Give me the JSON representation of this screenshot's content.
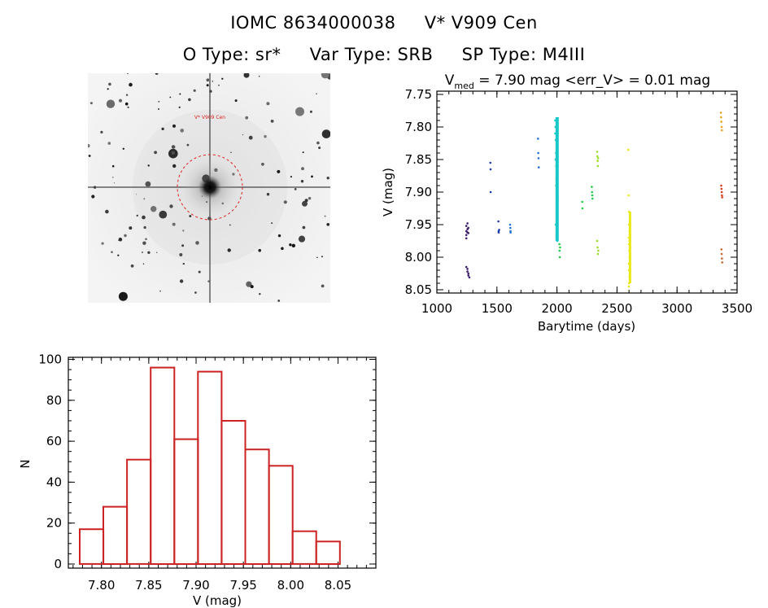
{
  "header": {
    "line1": {
      "id": "IOMC 8634000038",
      "name": "V* V909 Cen"
    },
    "line2": {
      "otype": "O Type: sr*",
      "vartype": "Var Type: SRB",
      "sptype": "SP Type: M4III"
    }
  },
  "colors": {
    "histogram_bar": "#cc2222",
    "sky_marker": "#dd2222",
    "lc_series": [
      "#3a1a6b",
      "#1a3aa8",
      "#1e6fd6",
      "#18c8c8",
      "#22cc44",
      "#99dd22",
      "#e8e818",
      "#e8a018",
      "#d83a18",
      "#c86428"
    ]
  },
  "chart_data": [
    {
      "type": "image",
      "description_label": "sky-cutout",
      "annotation": "V* V909 Cen"
    },
    {
      "type": "scatter",
      "title": {
        "main": "V",
        "subscript": "med",
        "rest": " = 7.90 mag <err_V> = 0.01 mag"
      },
      "xlabel": "Barytime (days)",
      "ylabel": "V (mag)",
      "xlim": [
        1000,
        3500
      ],
      "ylim": [
        8.055,
        7.745
      ],
      "y_inverted": true,
      "xticks": [
        1000,
        1500,
        2000,
        2500,
        3000,
        3500
      ],
      "yticks": [
        7.75,
        7.8,
        7.85,
        7.9,
        7.95,
        8.0,
        8.05
      ],
      "series": [
        {
          "x": [
            1245,
            1245,
            1245,
            1245,
            1245,
            1255,
            1255,
            1255,
            1255,
            1255,
            1262,
            1262,
            1262,
            1262,
            1270
          ],
          "y": [
            7.952,
            7.96,
            7.966,
            7.971,
            8.015,
            7.948,
            7.957,
            7.962,
            8.018,
            8.022,
            7.955,
            7.963,
            8.025,
            8.028,
            8.031
          ]
        },
        {
          "x": [
            1445,
            1447,
            1448,
            1512,
            1514,
            1515,
            1518
          ],
          "y": [
            7.855,
            7.865,
            7.9,
            7.945,
            7.96,
            7.962,
            7.958
          ]
        },
        {
          "x": [
            1610,
            1612,
            1613,
            1614,
            1842,
            1844,
            1846,
            1848
          ],
          "y": [
            7.95,
            7.955,
            7.96,
            7.962,
            7.818,
            7.84,
            7.848,
            7.862
          ]
        },
        {
          "x": [
            1985,
            1988,
            1990,
            1992,
            1994,
            1996,
            1998,
            2000,
            2002,
            2004,
            1986,
            1989,
            1993,
            1997,
            2001,
            2005,
            1990,
            1995,
            2000,
            2003
          ],
          "y": [
            7.79,
            7.8,
            7.82,
            7.84,
            7.86,
            7.88,
            7.9,
            7.92,
            7.94,
            7.96,
            7.81,
            7.85,
            7.89,
            7.93,
            7.87,
            7.91,
            7.95,
            7.965,
            7.83,
            7.975
          ]
        },
        {
          "x": [
            2020,
            2022,
            2024,
            2026,
            2210,
            2212,
            2290,
            2292,
            2294,
            2296
          ],
          "y": [
            7.98,
            7.99,
            8.0,
            7.985,
            7.915,
            7.925,
            7.892,
            7.9,
            7.905,
            7.91
          ]
        },
        {
          "x": [
            2335,
            2337,
            2339,
            2341,
            2343,
            2335,
            2338,
            2341,
            2344
          ],
          "y": [
            7.838,
            7.845,
            7.852,
            7.86,
            7.848,
            7.975,
            7.985,
            7.995,
            7.99
          ]
        },
        {
          "x": [
            2595,
            2597,
            2599,
            2601,
            2603,
            2598,
            2600,
            2602,
            2604,
            2599,
            2601,
            2603,
            2600,
            2598,
            2602
          ],
          "y": [
            7.835,
            7.905,
            7.93,
            7.95,
            7.96,
            7.97,
            7.98,
            7.99,
            8.0,
            8.01,
            8.02,
            8.03,
            8.04,
            8.045,
            7.975
          ]
        },
        {
          "x": [
            3365,
            3367,
            3369,
            3371,
            3373
          ],
          "y": [
            7.778,
            7.785,
            7.792,
            7.8,
            7.805
          ]
        },
        {
          "x": [
            3368,
            3370,
            3372,
            3374,
            3376
          ],
          "y": [
            7.89,
            7.895,
            7.9,
            7.905,
            7.908
          ]
        },
        {
          "x": [
            3370,
            3372,
            3374,
            3376
          ],
          "y": [
            7.988,
            7.995,
            8.002,
            8.008
          ]
        }
      ]
    },
    {
      "type": "bar",
      "xlabel": "V (mag)",
      "ylabel": "N",
      "xlim": [
        7.765,
        8.09
      ],
      "ylim": [
        -2,
        101
      ],
      "xticks": [
        7.8,
        7.85,
        7.9,
        7.95,
        8.0,
        8.05
      ],
      "yticks": [
        0,
        20,
        40,
        60,
        80,
        100
      ],
      "bin_edges": [
        7.777,
        7.802,
        7.827,
        7.852,
        7.877,
        7.902,
        7.927,
        7.952,
        7.977,
        8.002,
        8.027,
        8.052
      ],
      "values": [
        17,
        28,
        51,
        96,
        61,
        94,
        70,
        56,
        48,
        16,
        11
      ]
    }
  ]
}
